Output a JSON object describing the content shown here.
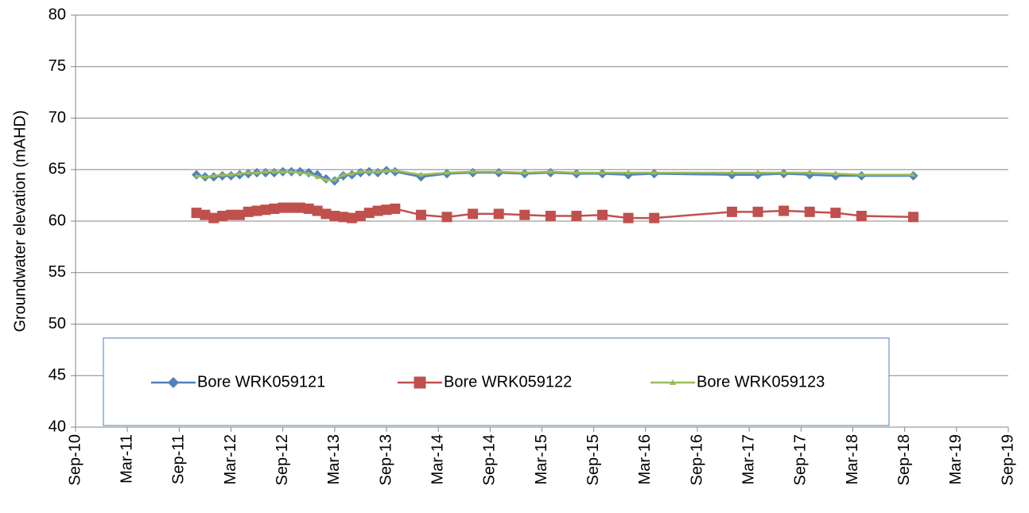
{
  "chart_data": {
    "type": "line",
    "y_label": "Groundwater elevation (mAHD)",
    "x": [
      "2011-11",
      "2011-12",
      "2012-01",
      "2012-02",
      "2012-03",
      "2012-04",
      "2012-05",
      "2012-06",
      "2012-07",
      "2012-08",
      "2012-09",
      "2012-10",
      "2012-11",
      "2012-12",
      "2013-01",
      "2013-02",
      "2013-03",
      "2013-04",
      "2013-05",
      "2013-06",
      "2013-07",
      "2013-08",
      "2013-09",
      "2013-10",
      "2014-01",
      "2014-04",
      "2014-07",
      "2014-10",
      "2015-01",
      "2015-04",
      "2015-07",
      "2015-10",
      "2016-01",
      "2016-04",
      "2017-01",
      "2017-04",
      "2017-07",
      "2017-10",
      "2018-01",
      "2018-04",
      "2018-10"
    ],
    "series": [
      {
        "name": "Bore WRK059121",
        "color": "#4f81bd",
        "marker": "diamond",
        "values": [
          64.5,
          64.3,
          64.3,
          64.4,
          64.4,
          64.5,
          64.6,
          64.7,
          64.7,
          64.7,
          64.8,
          64.8,
          64.8,
          64.7,
          64.5,
          64.1,
          63.9,
          64.4,
          64.5,
          64.7,
          64.8,
          64.7,
          64.9,
          64.8,
          64.3,
          64.6,
          64.7,
          64.7,
          64.6,
          64.7,
          64.6,
          64.6,
          64.5,
          64.6,
          64.5,
          64.5,
          64.6,
          64.5,
          64.4,
          64.4,
          64.4
        ]
      },
      {
        "name": "Bore WRK059122",
        "color": "#c0504d",
        "marker": "square",
        "values": [
          60.8,
          60.6,
          60.3,
          60.5,
          60.6,
          60.6,
          60.9,
          61.0,
          61.1,
          61.2,
          61.3,
          61.3,
          61.3,
          61.2,
          61.0,
          60.7,
          60.5,
          60.4,
          60.3,
          60.5,
          60.8,
          61.0,
          61.1,
          61.2,
          60.6,
          60.4,
          60.7,
          60.7,
          60.6,
          60.5,
          60.5,
          60.6,
          60.3,
          60.3,
          60.9,
          60.9,
          61.0,
          60.9,
          60.8,
          60.5,
          60.4
        ]
      },
      {
        "name": "Bore WRK059123",
        "color": "#9bbb59",
        "marker": "triangle",
        "values": [
          64.4,
          64.3,
          64.4,
          64.5,
          64.5,
          64.6,
          64.7,
          64.7,
          64.8,
          64.8,
          64.8,
          64.8,
          64.7,
          64.6,
          64.3,
          64.0,
          64.0,
          64.5,
          64.6,
          64.8,
          64.8,
          64.8,
          64.9,
          64.9,
          64.5,
          64.7,
          64.8,
          64.8,
          64.7,
          64.8,
          64.7,
          64.7,
          64.7,
          64.7,
          64.7,
          64.7,
          64.7,
          64.7,
          64.6,
          64.5,
          64.5
        ]
      }
    ],
    "xlim": [
      "2010-09",
      "2019-09"
    ],
    "xticks": [
      {
        "value": "2010-09",
        "label": "Sep-10"
      },
      {
        "value": "2011-03",
        "label": "Mar-11"
      },
      {
        "value": "2011-09",
        "label": "Sep-11"
      },
      {
        "value": "2012-03",
        "label": "Mar-12"
      },
      {
        "value": "2012-09",
        "label": "Sep-12"
      },
      {
        "value": "2013-03",
        "label": "Mar-13"
      },
      {
        "value": "2013-09",
        "label": "Sep-13"
      },
      {
        "value": "2014-03",
        "label": "Mar-14"
      },
      {
        "value": "2014-09",
        "label": "Sep-14"
      },
      {
        "value": "2015-03",
        "label": "Mar-15"
      },
      {
        "value": "2015-09",
        "label": "Sep-15"
      },
      {
        "value": "2016-03",
        "label": "Mar-16"
      },
      {
        "value": "2016-09",
        "label": "Sep-16"
      },
      {
        "value": "2017-03",
        "label": "Mar-17"
      },
      {
        "value": "2017-09",
        "label": "Sep-17"
      },
      {
        "value": "2018-03",
        "label": "Mar-18"
      },
      {
        "value": "2018-09",
        "label": "Sep-18"
      },
      {
        "value": "2019-03",
        "label": "Mar-19"
      },
      {
        "value": "2019-09",
        "label": "Sep-19"
      }
    ],
    "ylim": [
      40,
      80
    ],
    "yticks": [
      40,
      45,
      50,
      55,
      60,
      65,
      70,
      75,
      80
    ],
    "grid": true,
    "legend": "bottom"
  }
}
